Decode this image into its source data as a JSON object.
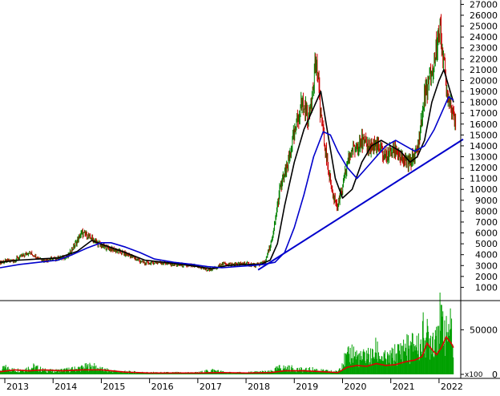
{
  "colors": {
    "up_candle": "#008000",
    "down_candle": "#cc0000",
    "ma_short": "#000000",
    "ma_long": "#0000cc",
    "trendline": "#0000cc",
    "volume": "#00a000",
    "volume_ma": "#dd0000",
    "axis": "#000000",
    "tick_label": "#000000"
  },
  "chart_data": [
    {
      "type": "line",
      "title": "",
      "xlabel": "",
      "ylabel": "",
      "ylim": [
        0,
        27400
      ],
      "xlim": [
        2012.9,
        2022.45
      ],
      "grid": false,
      "y_ticks": [
        1000,
        2000,
        3000,
        4000,
        5000,
        6000,
        7000,
        8000,
        9000,
        10000,
        11000,
        12000,
        13000,
        14000,
        15000,
        16000,
        17000,
        18000,
        19000,
        20000,
        21000,
        22000,
        23000,
        24000,
        25000,
        26000,
        27000
      ],
      "y_tick_labels": [
        "1000",
        "2000",
        "3000",
        "4000",
        "5000",
        "6000",
        "7000",
        "8000",
        "9000",
        "10000",
        "11000",
        "12000",
        "13000",
        "14000",
        "15000",
        "16000",
        "17000",
        "18000",
        "19000",
        "20000",
        "21000",
        "22000",
        "23000",
        "24000",
        "25000",
        "26000",
        "27000"
      ],
      "price_series": {
        "x": [
          2012.9,
          2013.2,
          2013.5,
          2013.8,
          2014.0,
          2014.3,
          2014.6,
          2014.8,
          2015.0,
          2015.3,
          2015.6,
          2015.9,
          2016.2,
          2016.5,
          2016.8,
          2017.0,
          2017.2,
          2017.4,
          2017.5,
          2017.7,
          2018.0,
          2018.2,
          2018.4,
          2018.55,
          2018.7,
          2018.85,
          2019.0,
          2019.15,
          2019.3,
          2019.45,
          2019.55,
          2019.6,
          2019.7,
          2019.8,
          2019.9,
          2020.0,
          2020.1,
          2020.2,
          2020.35,
          2020.5,
          2020.7,
          2020.9,
          2021.1,
          2021.25,
          2021.4,
          2021.55,
          2021.7,
          2021.8,
          2021.9,
          2022.0,
          2022.1,
          2022.15,
          2022.25,
          2022.35
        ],
        "values": [
          3300,
          3500,
          4200,
          3500,
          3600,
          3800,
          6000,
          5500,
          4800,
          4400,
          3900,
          3200,
          3300,
          3100,
          3000,
          2900,
          2600,
          2800,
          3200,
          3100,
          3200,
          3000,
          3400,
          5500,
          10000,
          12000,
          15000,
          18000,
          16500,
          22000,
          17000,
          15000,
          12000,
          9500,
          8500,
          10000,
          12500,
          13500,
          14500,
          14000,
          14000,
          13000,
          13800,
          12500,
          12500,
          13500,
          18500,
          20000,
          21500,
          25000,
          22000,
          19000,
          18000,
          16000
        ]
      },
      "series": [
        {
          "x": [
            2012.9,
            2013.3,
            2013.7,
            2014.1,
            2014.5,
            2014.8,
            2015.1,
            2015.5,
            2015.9,
            2016.3,
            2016.7,
            2017.0,
            2017.3,
            2017.6,
            2018.0,
            2018.3,
            2018.5,
            2018.65,
            2018.8,
            2019.0,
            2019.2,
            2019.4,
            2019.55,
            2019.7,
            2019.85,
            2020.0,
            2020.2,
            2020.4,
            2020.6,
            2020.8,
            2021.0,
            2021.2,
            2021.4,
            2021.55,
            2021.7,
            2021.85,
            2022.0,
            2022.1,
            2022.2,
            2022.3
          ],
          "values": [
            3300,
            3500,
            3600,
            3700,
            4300,
            5300,
            4800,
            4200,
            3500,
            3300,
            3100,
            2900,
            2700,
            3000,
            3100,
            3100,
            3500,
            5000,
            8500,
            12500,
            15500,
            17500,
            19000,
            15000,
            11000,
            9200,
            10000,
            12500,
            14000,
            14500,
            14000,
            13500,
            12500,
            13000,
            14500,
            18000,
            20000,
            21000,
            19500,
            18000
          ]
        },
        {
          "x": [
            2012.9,
            2013.3,
            2013.7,
            2014.1,
            2014.4,
            2014.7,
            2015.0,
            2015.2,
            2015.5,
            2015.8,
            2016.1,
            2016.5,
            2016.9,
            2017.2,
            2017.5,
            2017.8,
            2018.1,
            2018.35,
            2018.6,
            2018.8,
            2019.0,
            2019.2,
            2019.4,
            2019.6,
            2019.75,
            2019.9,
            2020.1,
            2020.3,
            2020.5,
            2020.7,
            2020.9,
            2021.1,
            2021.3,
            2021.5,
            2021.7,
            2021.9,
            2022.05,
            2022.2,
            2022.3
          ],
          "values": [
            2800,
            3100,
            3300,
            3500,
            4000,
            4600,
            5100,
            5100,
            4700,
            4200,
            3600,
            3300,
            3100,
            2900,
            2800,
            2900,
            3000,
            3100,
            3300,
            4200,
            6500,
            9500,
            13000,
            15300,
            15000,
            13500,
            12000,
            11000,
            12000,
            13000,
            14000,
            14500,
            14000,
            13500,
            14000,
            15500,
            17000,
            18500,
            18200
          ]
        }
      ],
      "trendline": {
        "x": [
          2018.25,
          2022.5
        ],
        "values": [
          2600,
          14600
        ]
      }
    },
    {
      "type": "bar",
      "title": "",
      "xlabel": "",
      "ylabel": "",
      "ylim": [
        0,
        80000
      ],
      "y_ticks": [
        0,
        50000
      ],
      "y_tick_labels": [
        "0",
        "50000"
      ],
      "unit_label": "x100",
      "series": [
        {
          "x": [
            2012.9,
            2013.0,
            2013.2,
            2013.4,
            2013.6,
            2013.8,
            2014.0,
            2014.2,
            2014.4,
            2014.6,
            2014.8,
            2015.0,
            2015.2,
            2015.5,
            2016.0,
            2016.5,
            2017.0,
            2017.3,
            2017.6,
            2018.0,
            2018.3,
            2018.5,
            2018.7,
            2019.0,
            2019.2,
            2019.4,
            2019.6,
            2019.9,
            2020.0,
            2020.1,
            2020.2,
            2020.3,
            2020.4,
            2020.5,
            2020.6,
            2020.7,
            2020.8,
            2020.9,
            2021.0,
            2021.1,
            2021.2,
            2021.3,
            2021.4,
            2021.5,
            2021.6,
            2021.7,
            2021.75,
            2021.8,
            2021.85,
            2021.9,
            2021.95,
            2022.0,
            2022.05,
            2022.1,
            2022.15,
            2022.2,
            2022.25,
            2022.3
          ],
          "values": [
            4000,
            8000,
            5000,
            6000,
            9000,
            5000,
            4000,
            5000,
            6000,
            8000,
            10000,
            6000,
            4000,
            3000,
            2000,
            2000,
            2000,
            5000,
            2000,
            2000,
            3000,
            3000,
            8000,
            7000,
            5000,
            6000,
            4000,
            3000,
            15000,
            20000,
            28000,
            22000,
            18000,
            25000,
            20000,
            30000,
            22000,
            18000,
            20000,
            25000,
            28000,
            35000,
            30000,
            40000,
            32000,
            55000,
            45000,
            38000,
            50000,
            42000,
            60000,
            70000,
            55000,
            68000,
            45000,
            60000,
            50000,
            40000
          ]
        },
        {
          "name": "volume-ma",
          "x": [
            2012.9,
            2013.2,
            2013.5,
            2013.8,
            2014.2,
            2014.6,
            2015.0,
            2015.5,
            2016.0,
            2016.5,
            2017.0,
            2017.5,
            2018.0,
            2018.5,
            2018.8,
            2019.2,
            2019.6,
            2019.9,
            2020.1,
            2020.3,
            2020.5,
            2020.7,
            2020.9,
            2021.1,
            2021.3,
            2021.5,
            2021.65,
            2021.75,
            2021.85,
            2021.95,
            2022.05,
            2022.15,
            2022.25,
            2022.3
          ],
          "values": [
            3000,
            5000,
            4000,
            5000,
            4000,
            5000,
            5000,
            2500,
            1500,
            1500,
            1500,
            2000,
            1500,
            2000,
            4000,
            4000,
            3000,
            2000,
            8000,
            10000,
            9000,
            12000,
            10000,
            11000,
            14000,
            16000,
            20000,
            35000,
            28000,
            22000,
            30000,
            42000,
            35000,
            30000
          ]
        }
      ]
    }
  ],
  "x_axis": {
    "ticks": [
      2013,
      2014,
      2015,
      2016,
      2017,
      2018,
      2019,
      2020,
      2021,
      2022
    ],
    "labels": [
      "2013",
      "2014",
      "2015",
      "2016",
      "2017",
      "2018",
      "2019",
      "2020",
      "2021",
      "2022"
    ]
  }
}
